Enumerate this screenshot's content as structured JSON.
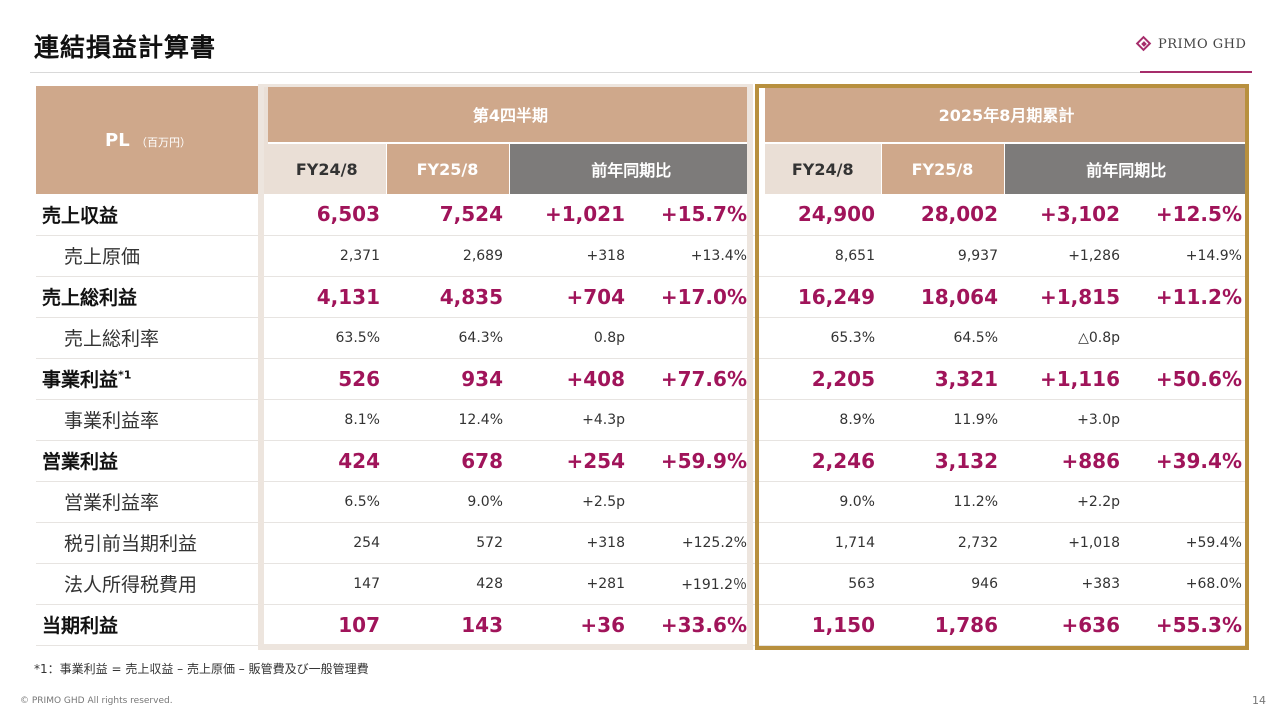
{
  "title": "連結損益計算書",
  "logo": {
    "text": "PRIMO GHD"
  },
  "table": {
    "pl_label": "PL",
    "unit": "（百万円）",
    "group_q4": "第4四半期",
    "group_cum": "2025年8月期累計",
    "col_fy24": "FY24/8",
    "col_fy25": "FY25/8",
    "col_yoy": "前年同期比",
    "rows": [
      {
        "label": "売上収益",
        "sup": "",
        "bold": true,
        "indent": false,
        "q": [
          "6,503",
          "7,524",
          "+1,021",
          "+15.7%"
        ],
        "c": [
          "24,900",
          "28,002",
          "+3,102",
          "+12.5%"
        ]
      },
      {
        "label": "売上原価",
        "sup": "",
        "bold": false,
        "indent": true,
        "q": [
          "2,371",
          "2,689",
          "+318",
          "+13.4%"
        ],
        "c": [
          "8,651",
          "9,937",
          "+1,286",
          "+14.9%"
        ]
      },
      {
        "label": "売上総利益",
        "sup": "",
        "bold": true,
        "indent": false,
        "q": [
          "4,131",
          "4,835",
          "+704",
          "+17.0%"
        ],
        "c": [
          "16,249",
          "18,064",
          "+1,815",
          "+11.2%"
        ]
      },
      {
        "label": "売上総利率",
        "sup": "",
        "bold": false,
        "indent": true,
        "q": [
          "63.5%",
          "64.3%",
          "0.8p",
          ""
        ],
        "c": [
          "65.3%",
          "64.5%",
          "△0.8p",
          ""
        ]
      },
      {
        "label": "事業利益",
        "sup": "*1",
        "bold": true,
        "indent": false,
        "q": [
          "526",
          "934",
          "+408",
          "+77.6%"
        ],
        "c": [
          "2,205",
          "3,321",
          "+1,116",
          "+50.6%"
        ]
      },
      {
        "label": "事業利益率",
        "sup": "",
        "bold": false,
        "indent": true,
        "q": [
          "8.1%",
          "12.4%",
          "+4.3p",
          ""
        ],
        "c": [
          "8.9%",
          "11.9%",
          "+3.0p",
          ""
        ]
      },
      {
        "label": "営業利益",
        "sup": "",
        "bold": true,
        "indent": false,
        "q": [
          "424",
          "678",
          "+254",
          "+59.9%"
        ],
        "c": [
          "2,246",
          "3,132",
          "+886",
          "+39.4%"
        ]
      },
      {
        "label": "営業利益率",
        "sup": "",
        "bold": false,
        "indent": true,
        "q": [
          "6.5%",
          "9.0%",
          "+2.5p",
          ""
        ],
        "c": [
          "9.0%",
          "11.2%",
          "+2.2p",
          ""
        ]
      },
      {
        "label": "税引前当期利益",
        "sup": "",
        "bold": false,
        "indent": true,
        "q": [
          "254",
          "572",
          "+318",
          "+125.2%"
        ],
        "c": [
          "1,714",
          "2,732",
          "+1,018",
          "+59.4%"
        ]
      },
      {
        "label": "法人所得税費用",
        "sup": "",
        "bold": false,
        "indent": true,
        "q": [
          "147",
          "428",
          "+281",
          "+191.2％"
        ],
        "c": [
          "563",
          "946",
          "+383",
          "+68.0%"
        ]
      },
      {
        "label": "当期利益",
        "sup": "",
        "bold": true,
        "indent": false,
        "q": [
          "107",
          "143",
          "+36",
          "+33.6%"
        ],
        "c": [
          "1,150",
          "1,786",
          "+636",
          "+55.3%"
        ]
      }
    ]
  },
  "footnote": "*1：事業利益 = 売上収益 – 売上原価 – 販管費及び一般管理費",
  "copyright": "© PRIMO GHD All rights reserved.",
  "page_number": "14"
}
